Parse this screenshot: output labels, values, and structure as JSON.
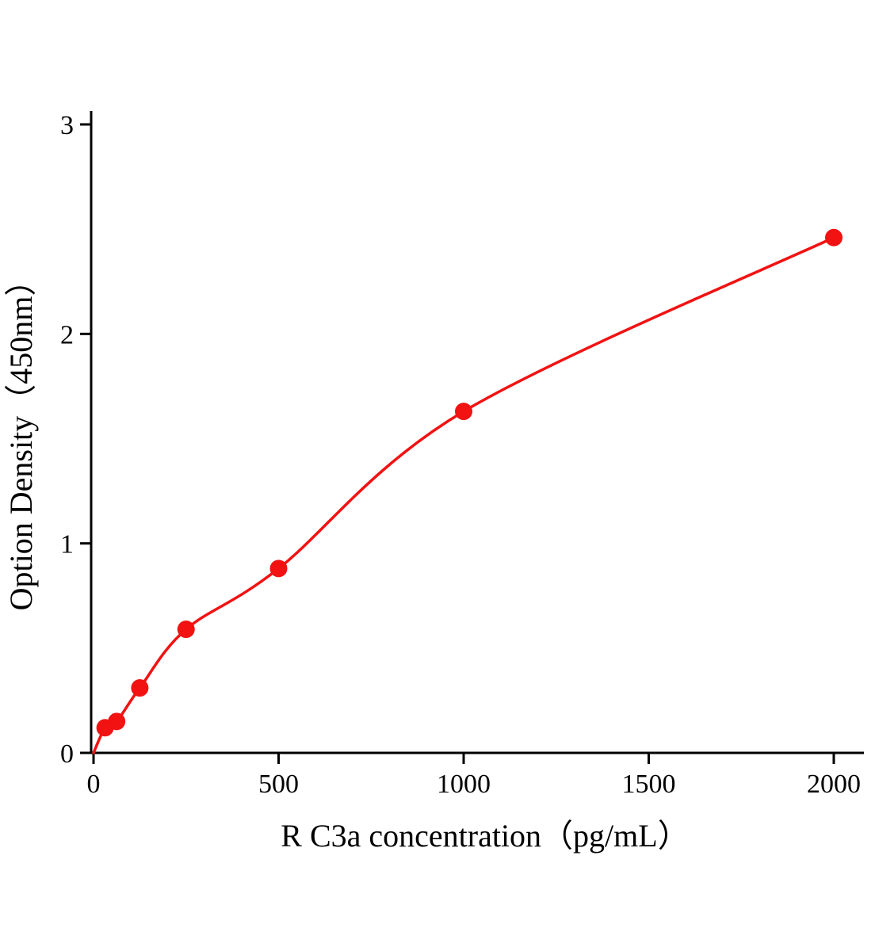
{
  "figure": {
    "background": "#ffffff"
  },
  "chart_data": {
    "type": "scatter",
    "title": "",
    "xlabel": "R C3a concentration（pg/mL）",
    "ylabel": "Option Density（450nm）",
    "x": [
      0,
      31.25,
      62.5,
      125,
      250,
      500,
      1000,
      2000
    ],
    "y": [
      0,
      0.12,
      0.15,
      0.31,
      0.59,
      0.88,
      1.63,
      2.46
    ],
    "xlim": [
      0,
      2080
    ],
    "ylim": [
      0,
      3
    ],
    "x_ticks": [
      0,
      500,
      1000,
      1500,
      2000
    ],
    "y_ticks": [
      0,
      1,
      2,
      3
    ],
    "curve": "smooth-through-points",
    "grid": false,
    "legend": null,
    "marker_color": "#f21212",
    "line_color": "#f21212",
    "axis_color": "#000000"
  }
}
